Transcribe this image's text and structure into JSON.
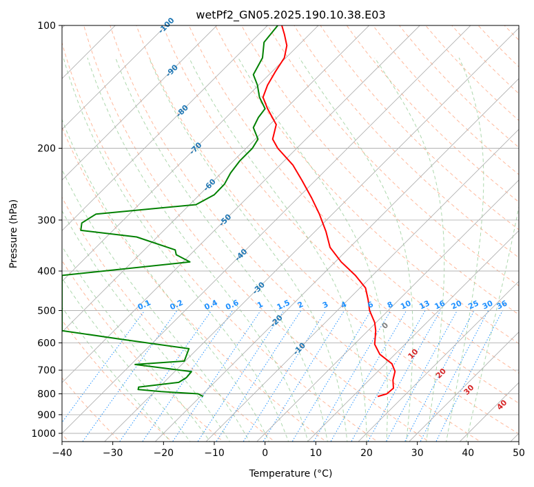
{
  "chart_data": {
    "type": "line",
    "subtype": "skew-t log-p sounding",
    "title": "wetPf2_GN05.2025.190.10.38.E03",
    "xlabel": "Temperature (°C)",
    "ylabel": "Pressure (hPa)",
    "xlim": [
      -40,
      50
    ],
    "ylim": [
      1050,
      100
    ],
    "y_scale": "log",
    "grid": true,
    "x_ticks": [
      "−40",
      "−30",
      "−20",
      "−10",
      "0",
      "10",
      "20",
      "30",
      "40",
      "50"
    ],
    "y_ticks": [
      "100",
      "200",
      "300",
      "400",
      "500",
      "600",
      "700",
      "800",
      "900",
      "1000"
    ],
    "series": [
      {
        "color": "#ff0000",
        "points": [
          [
            22.2,
            812
          ],
          [
            24.0,
            800
          ],
          [
            25.3,
            775
          ],
          [
            25.2,
            740
          ],
          [
            25.6,
            705
          ],
          [
            25.0,
            675
          ],
          [
            22.6,
            640
          ],
          [
            21.6,
            605
          ],
          [
            21.8,
            560
          ],
          [
            21.6,
            535
          ],
          [
            20.6,
            500
          ],
          [
            20.3,
            470
          ],
          [
            19.8,
            440
          ],
          [
            17.8,
            410
          ],
          [
            15.0,
            380
          ],
          [
            12.8,
            350
          ],
          [
            12.0,
            320
          ],
          [
            10.7,
            290
          ],
          [
            9.2,
            265
          ],
          [
            7.3,
            240
          ],
          [
            5.5,
            220
          ],
          [
            2.5,
            200
          ],
          [
            1.5,
            190
          ],
          [
            2.2,
            175
          ],
          [
            0.5,
            160
          ],
          [
            -0.4,
            150
          ],
          [
            0.5,
            140
          ],
          [
            2.0,
            130
          ],
          [
            3.8,
            120
          ],
          [
            4.3,
            112
          ],
          [
            3.8,
            105
          ],
          [
            3.3,
            100
          ]
        ]
      },
      {
        "color": "#008000",
        "points": [
          [
            -12.2,
            812
          ],
          [
            -13.2,
            800
          ],
          [
            -20.5,
            790
          ],
          [
            -25.0,
            781
          ],
          [
            -24.9,
            770
          ],
          [
            -17.0,
            750
          ],
          [
            -15.5,
            730
          ],
          [
            -14.5,
            706
          ],
          [
            -25.6,
            678
          ],
          [
            -15.9,
            665
          ],
          [
            -15.0,
            620
          ],
          [
            -28.3,
            588
          ],
          [
            -40.0,
            560
          ],
          [
            -40.0,
            410
          ],
          [
            -14.8,
            380
          ],
          [
            -17.5,
            365
          ],
          [
            -17.7,
            355
          ],
          [
            -25.3,
            330
          ],
          [
            -36.3,
            318
          ],
          [
            -36.1,
            305
          ],
          [
            -33.3,
            290
          ],
          [
            -13.6,
            275
          ],
          [
            -10.0,
            260
          ],
          [
            -8.0,
            245
          ],
          [
            -6.8,
            230
          ],
          [
            -5.0,
            215
          ],
          [
            -2.5,
            200
          ],
          [
            -1.4,
            190
          ],
          [
            -2.3,
            178
          ],
          [
            -1.3,
            168
          ],
          [
            0.0,
            160
          ],
          [
            -1.1,
            150
          ],
          [
            -1.5,
            140
          ],
          [
            -2.3,
            132
          ],
          [
            -0.5,
            120
          ],
          [
            -0.2,
            110
          ],
          [
            2.5,
            100
          ]
        ]
      }
    ],
    "dry_adiabat_labels": [
      "-100",
      "-90",
      "-80",
      "-70",
      "-60",
      "-50",
      "-40",
      "-30",
      "-20",
      "-10"
    ],
    "moist_adiabat_labels": [
      "0",
      "10",
      "20",
      "30",
      "40"
    ],
    "mixing_ratio_labels": [
      "0.1",
      "0.2",
      "0.4",
      "0.6",
      "1",
      "1.5",
      "2",
      "3",
      "4",
      "6",
      "8",
      "10",
      "13",
      "16",
      "20",
      "25",
      "30",
      "36"
    ],
    "colors": {
      "temperature": "#ff0000",
      "dewpoint": "#008000",
      "dry_adiabat_label": "#1f77b4",
      "moist_adiabat_label": "#d62728",
      "mixing_ratio": "#1e90ff",
      "dry_adiabat_line": "#ffa07a",
      "moist_adiabat_line": "#90c990",
      "skew_isotherm": "#b0b0b0"
    }
  }
}
